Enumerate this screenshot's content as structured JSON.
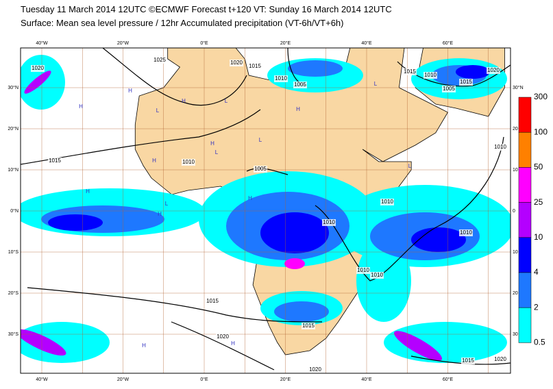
{
  "header": {
    "line1": "Tuesday 11 March 2014 12UTC ©ECMWF Forecast t+120 VT: Sunday 16 March 2014 12UTC",
    "line2": "Surface: Mean sea level pressure / 12hr Accumulated precipitation (VT-6h/VT+6h)"
  },
  "lon_labels": [
    "40°W",
    "20°W",
    "0°E",
    "20°E",
    "40°E",
    "60°E"
  ],
  "lat_labels": [
    "30°N",
    "20°N",
    "10°N",
    "0°N",
    "10°S",
    "20°S",
    "30°S"
  ],
  "lat_labels_right": [
    "30°N",
    "20",
    "10",
    "0",
    "10",
    "20",
    "30"
  ],
  "colorbar": {
    "levels": [
      300,
      100,
      50,
      25,
      10,
      4,
      2,
      0.5
    ],
    "colors": [
      "#ff0000",
      "#ff8000",
      "#ff00ff",
      "#b400ff",
      "#0000ff",
      "#1e78ff",
      "#00ffff"
    ]
  },
  "isobar_labels": [
    "1020",
    "1025",
    "1020",
    "1015",
    "1010",
    "1005",
    "1015",
    "1010",
    "1005",
    "1015",
    "1020",
    "1010",
    "1015",
    "1005",
    "1010",
    "1010",
    "1010",
    "1010",
    "1010",
    "1015",
    "1020",
    "1015",
    "1020",
    "1015",
    "1020",
    "1010"
  ],
  "pressure_centers": [
    "H",
    "H",
    "L",
    "H",
    "L",
    "H",
    "L",
    "H",
    "H",
    "L",
    "H",
    "L",
    "H",
    "L",
    "H",
    "H",
    "H",
    "L"
  ]
}
